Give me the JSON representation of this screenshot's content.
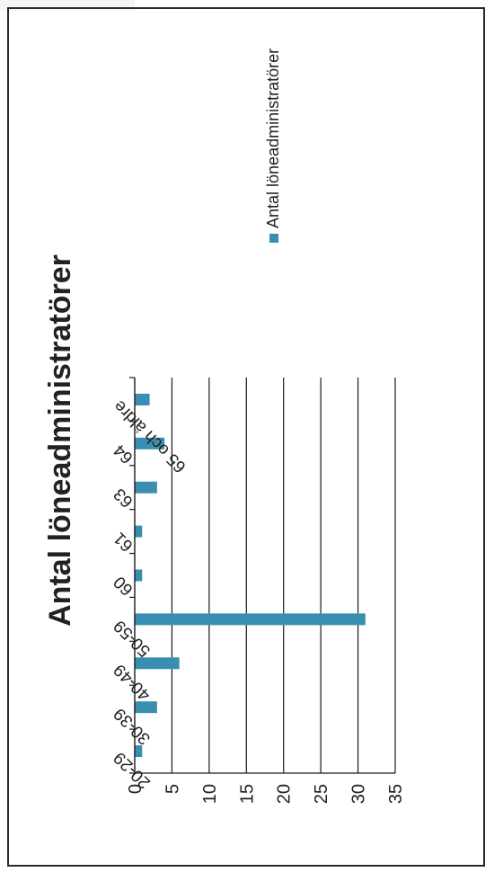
{
  "chart_data": {
    "type": "bar",
    "title": "Antal löneadministratörer",
    "categories": [
      "20-29",
      "30-39",
      "40-49",
      "50-59",
      "60",
      "61",
      "63",
      "64",
      "65 och äldre"
    ],
    "series": [
      {
        "name": "Antal löneadministratörer",
        "values": [
          1,
          3,
          6,
          31,
          1,
          1,
          3,
          4,
          2
        ],
        "color": "#3a8fb0"
      }
    ],
    "ylim": [
      0,
      35
    ],
    "yticks": [
      0,
      5,
      10,
      15,
      20,
      25,
      30,
      35
    ],
    "grid": true,
    "legend_placement": "top-right",
    "orientation": "rotated-90-degrees"
  }
}
